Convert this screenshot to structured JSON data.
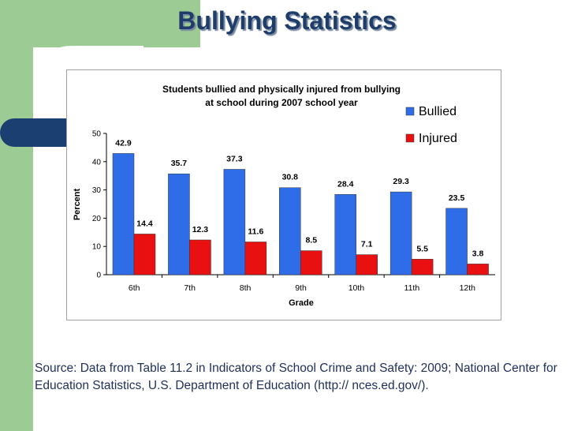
{
  "slide": {
    "title": "Bullying Statistics",
    "source": "Source: Data from Table 11.2 in Indicators of School Crime and Safety: 2009; National Center for Education Statistics, U.S. Department of Education (http:// nces.ed.gov/).",
    "colors": {
      "title": "#1e3d6b",
      "green": "#9ccc94",
      "navy": "#1c3f72",
      "source_text": "#1f2f5a"
    }
  },
  "chart_data": {
    "type": "bar",
    "title_line1": "Students bullied and physically injured from bullying",
    "title_line2": "at school during 2007 school year",
    "xlabel": "Grade",
    "ylabel": "Percent",
    "ylim": [
      0,
      50
    ],
    "yticks": [
      0,
      10,
      20,
      30,
      40,
      50
    ],
    "categories": [
      "6th",
      "7th",
      "8th",
      "9th",
      "10th",
      "11th",
      "12th"
    ],
    "series": [
      {
        "name": "Bullied",
        "color": "#2f6de8",
        "values": [
          42.9,
          35.7,
          37.3,
          30.8,
          28.4,
          29.3,
          23.5
        ]
      },
      {
        "name": "Injured",
        "color": "#e81010",
        "values": [
          14.4,
          12.3,
          11.6,
          8.5,
          7.1,
          5.5,
          3.8
        ]
      }
    ],
    "legend_position": "top-right"
  }
}
